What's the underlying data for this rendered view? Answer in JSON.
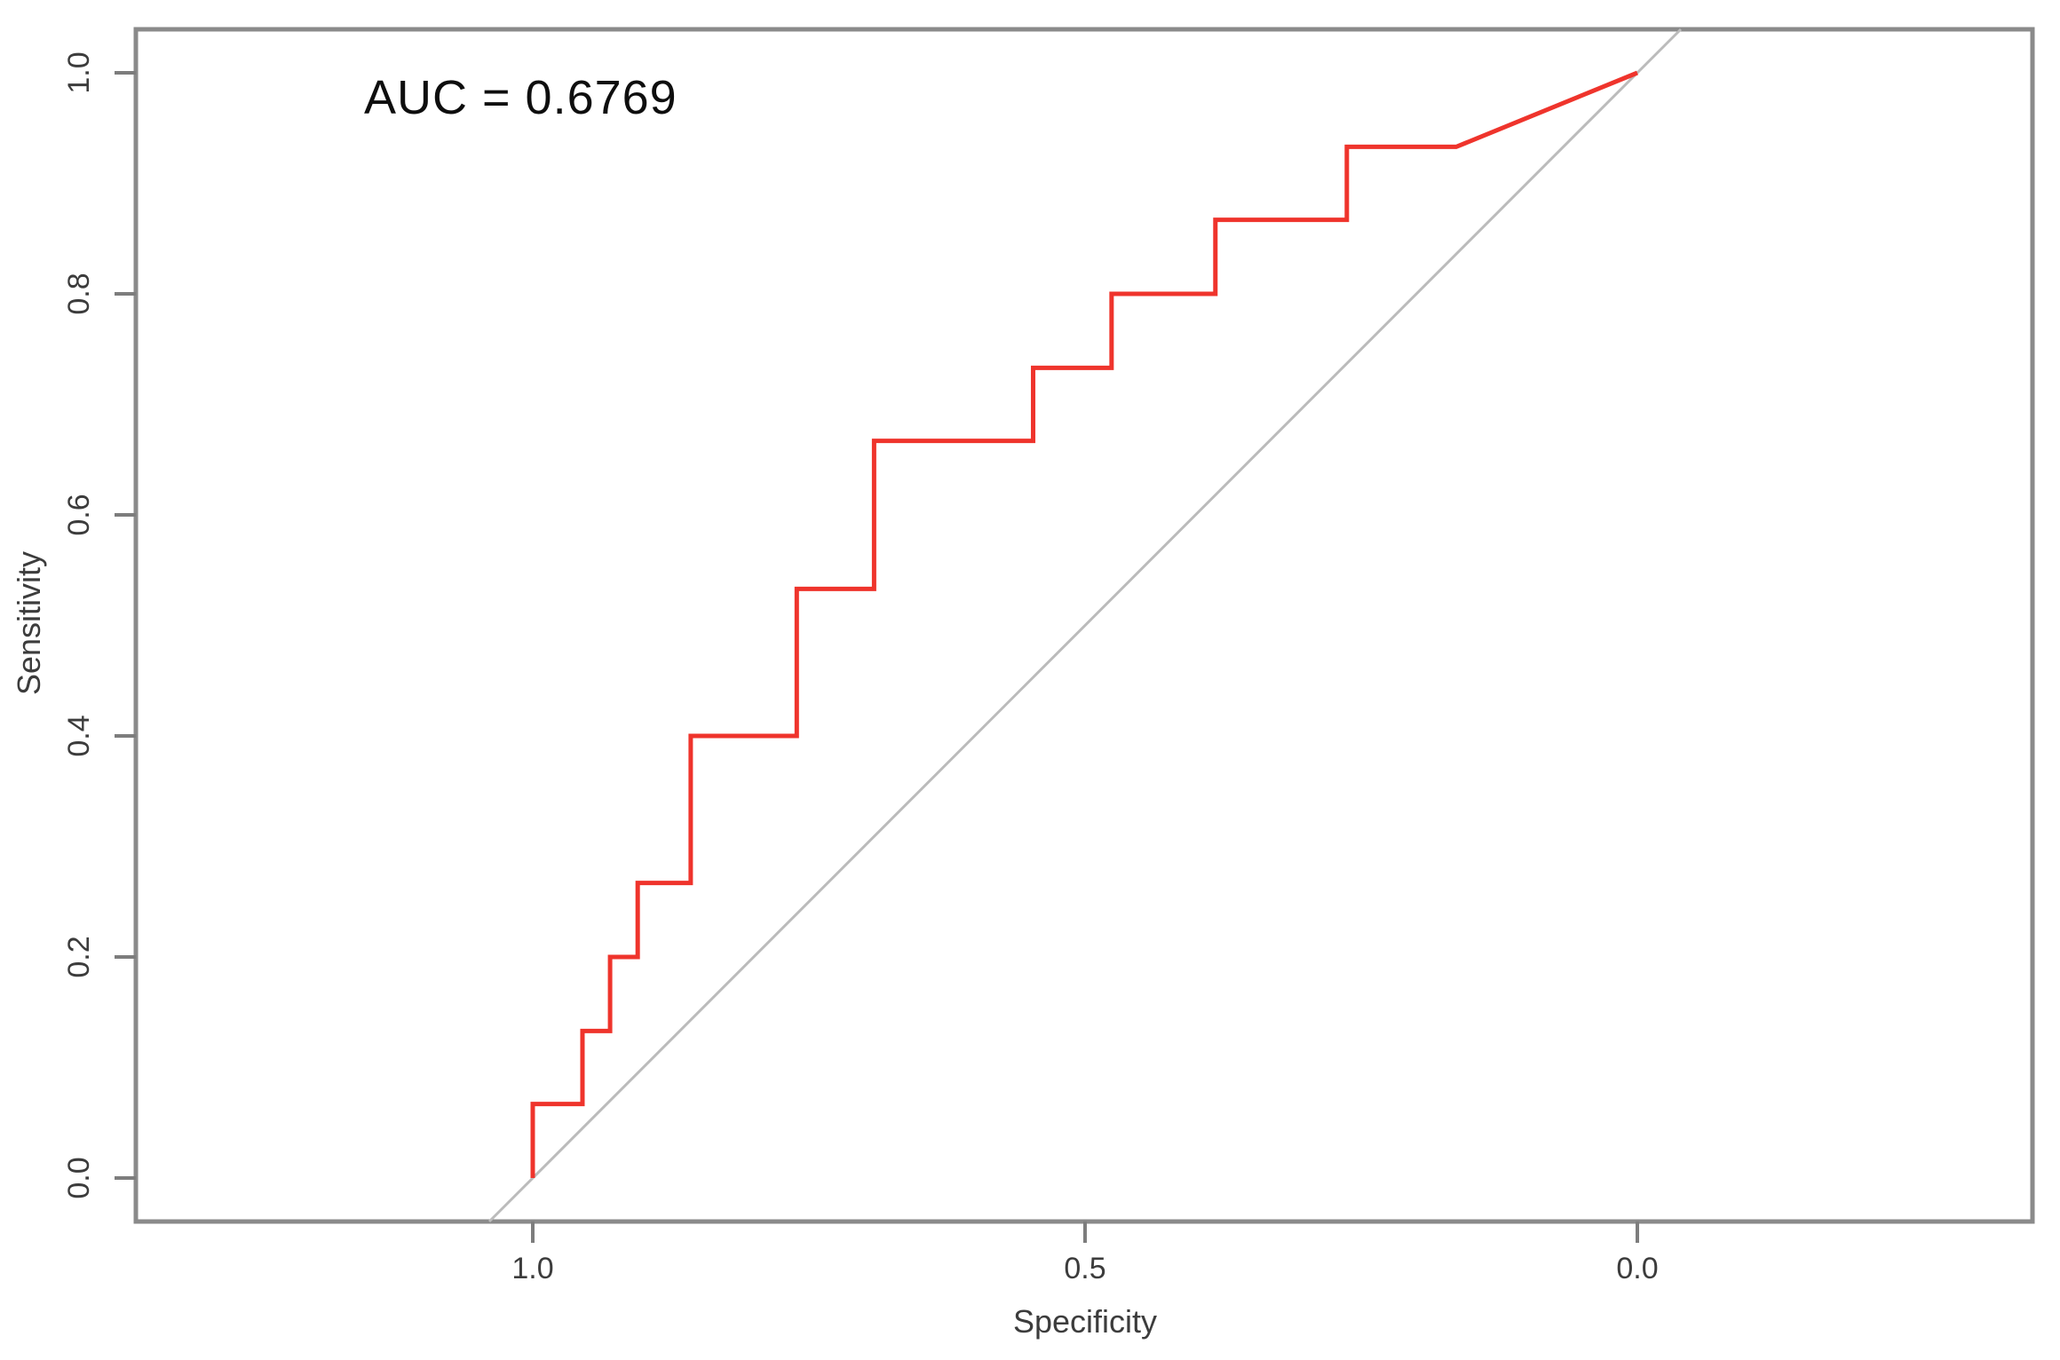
{
  "chart_data": {
    "type": "line",
    "subtype": "roc-curve",
    "annotation": "AUC = 0.6769",
    "auc_value": 0.6769,
    "title": "",
    "xlabel": "Specificity",
    "ylabel": "Sensitivity",
    "x_axis_reversed": true,
    "grid": false,
    "legend": null,
    "x_ticks": [
      "1.0",
      "0.5",
      "0.0"
    ],
    "x_tick_values": [
      1.0,
      0.5,
      0.0
    ],
    "y_ticks": [
      "0.0",
      "0.2",
      "0.4",
      "0.6",
      "0.8",
      "1.0"
    ],
    "y_tick_values": [
      0.0,
      0.2,
      0.4,
      0.6,
      0.8,
      1.0
    ],
    "xlim": [
      1.36,
      -0.36
    ],
    "ylim": [
      -0.04,
      1.04
    ],
    "series": [
      {
        "name": "ROC curve",
        "color": "#ef342c",
        "points": [
          [
            1.0,
            0.0
          ],
          [
            1.0,
            0.067
          ],
          [
            0.955,
            0.067
          ],
          [
            0.955,
            0.133
          ],
          [
            0.93,
            0.133
          ],
          [
            0.93,
            0.2
          ],
          [
            0.905,
            0.2
          ],
          [
            0.905,
            0.267
          ],
          [
            0.857,
            0.267
          ],
          [
            0.857,
            0.4
          ],
          [
            0.761,
            0.4
          ],
          [
            0.761,
            0.533
          ],
          [
            0.691,
            0.533
          ],
          [
            0.691,
            0.667
          ],
          [
            0.547,
            0.667
          ],
          [
            0.547,
            0.733
          ],
          [
            0.476,
            0.733
          ],
          [
            0.476,
            0.8
          ],
          [
            0.382,
            0.8
          ],
          [
            0.382,
            0.867
          ],
          [
            0.263,
            0.867
          ],
          [
            0.263,
            0.933
          ],
          [
            0.164,
            0.933
          ],
          [
            0.0,
            1.0
          ]
        ]
      },
      {
        "name": "Chance diagonal",
        "color": "#bbbbbb",
        "reference_line": true,
        "points": [
          [
            1.0,
            0.0
          ],
          [
            0.0,
            1.0
          ]
        ]
      }
    ],
    "colors": {
      "curve": "#ef342c",
      "diagonal": "#bbbbbb",
      "box": "#8a8a8a",
      "tick": "#7d7d7d",
      "tick_label": "#3c3c3c",
      "annotation": "#0e0e0e",
      "background": "#ffffff"
    }
  }
}
